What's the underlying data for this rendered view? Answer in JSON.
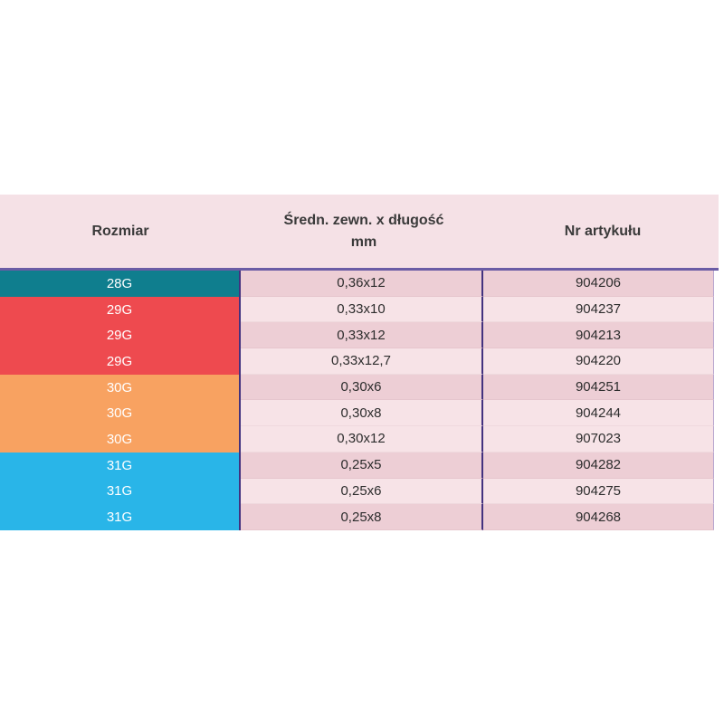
{
  "table": {
    "header": {
      "col1": "Rozmiar",
      "col2_line1": "Średn. zewn. x długość",
      "col2_line2": "mm",
      "col3": "Nr artykułu"
    },
    "colors": {
      "header_bg": "#f5e1e6",
      "header_text": "#3a3a3a",
      "body_text": "#2d2d2d",
      "row_light": "#f7e3e7",
      "row_dark": "#edced5",
      "rule": "#6b5ca5",
      "divider": "#43327f",
      "edge": "#b7a6cf",
      "size_28G": "#0f7e8e",
      "size_29G": "#ee4a4f",
      "size_30G": "#f8a261",
      "size_31G": "#29b5e8"
    },
    "rows": [
      {
        "size": "28G",
        "size_color": "#0f7e8e",
        "dim": "0,36x12",
        "art": "904206",
        "shade": "dark"
      },
      {
        "size": "29G",
        "size_color": "#ee4a4f",
        "dim": "0,33x10",
        "art": "904237",
        "shade": "light"
      },
      {
        "size": "29G",
        "size_color": "#ee4a4f",
        "dim": "0,33x12",
        "art": "904213",
        "shade": "dark"
      },
      {
        "size": "29G",
        "size_color": "#ee4a4f",
        "dim": "0,33x12,7",
        "art": "904220",
        "shade": "light"
      },
      {
        "size": "30G",
        "size_color": "#f8a261",
        "dim": "0,30x6",
        "art": "904251",
        "shade": "dark"
      },
      {
        "size": "30G",
        "size_color": "#f8a261",
        "dim": "0,30x8",
        "art": "904244",
        "shade": "light"
      },
      {
        "size": "30G",
        "size_color": "#f8a261",
        "dim": "0,30x12",
        "art": "907023",
        "shade": "light"
      },
      {
        "size": "31G",
        "size_color": "#29b5e8",
        "dim": "0,25x5",
        "art": "904282",
        "shade": "dark"
      },
      {
        "size": "31G",
        "size_color": "#29b5e8",
        "dim": "0,25x6",
        "art": "904275",
        "shade": "light"
      },
      {
        "size": "31G",
        "size_color": "#29b5e8",
        "dim": "0,25x8",
        "art": "904268",
        "shade": "dark"
      }
    ]
  }
}
